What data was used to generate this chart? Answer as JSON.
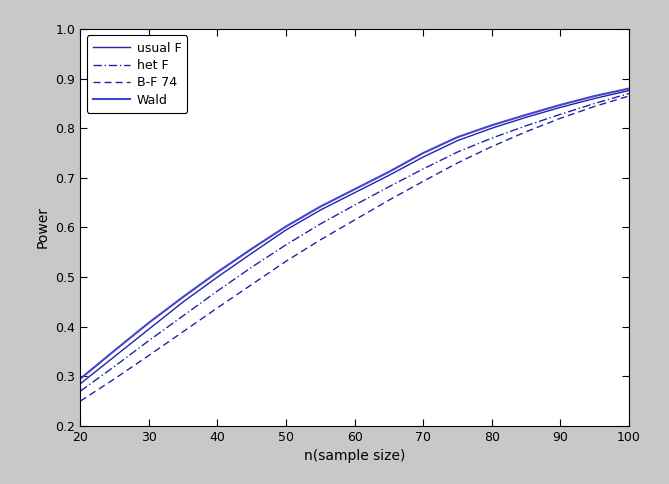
{
  "x": [
    20,
    25,
    30,
    35,
    40,
    45,
    50,
    55,
    60,
    65,
    70,
    75,
    80,
    85,
    90,
    95,
    100
  ],
  "usual_F": [
    0.285,
    0.34,
    0.395,
    0.45,
    0.5,
    0.548,
    0.595,
    0.635,
    0.67,
    0.705,
    0.742,
    0.775,
    0.8,
    0.822,
    0.842,
    0.86,
    0.876
  ],
  "het_F": [
    0.27,
    0.32,
    0.372,
    0.422,
    0.472,
    0.52,
    0.565,
    0.607,
    0.645,
    0.682,
    0.718,
    0.752,
    0.78,
    0.805,
    0.828,
    0.85,
    0.87
  ],
  "bf74": [
    0.25,
    0.295,
    0.342,
    0.39,
    0.438,
    0.485,
    0.532,
    0.575,
    0.615,
    0.655,
    0.693,
    0.73,
    0.763,
    0.793,
    0.82,
    0.844,
    0.865
  ],
  "wald": [
    0.295,
    0.352,
    0.408,
    0.46,
    0.51,
    0.557,
    0.602,
    0.642,
    0.677,
    0.712,
    0.75,
    0.782,
    0.806,
    0.827,
    0.847,
    0.865,
    0.88
  ],
  "color_usual": "#2222aa",
  "color_het": "#2222aa",
  "color_bf74": "#2222aa",
  "color_wald": "#4444cc",
  "xlim": [
    20,
    100
  ],
  "ylim": [
    0.2,
    1.0
  ],
  "xlabel": "n(sample size)",
  "ylabel": "Power",
  "xticks": [
    20,
    30,
    40,
    50,
    60,
    70,
    80,
    90,
    100
  ],
  "yticks": [
    0.2,
    0.3,
    0.4,
    0.5,
    0.6,
    0.7,
    0.8,
    0.9,
    1.0
  ],
  "legend_labels": [
    "usual F",
    "het F",
    "B-F 74",
    "Wald"
  ],
  "figsize": [
    6.69,
    4.84
  ],
  "dpi": 100,
  "fig_facecolor": "#c8c8c8",
  "axes_facecolor": "#ffffff"
}
